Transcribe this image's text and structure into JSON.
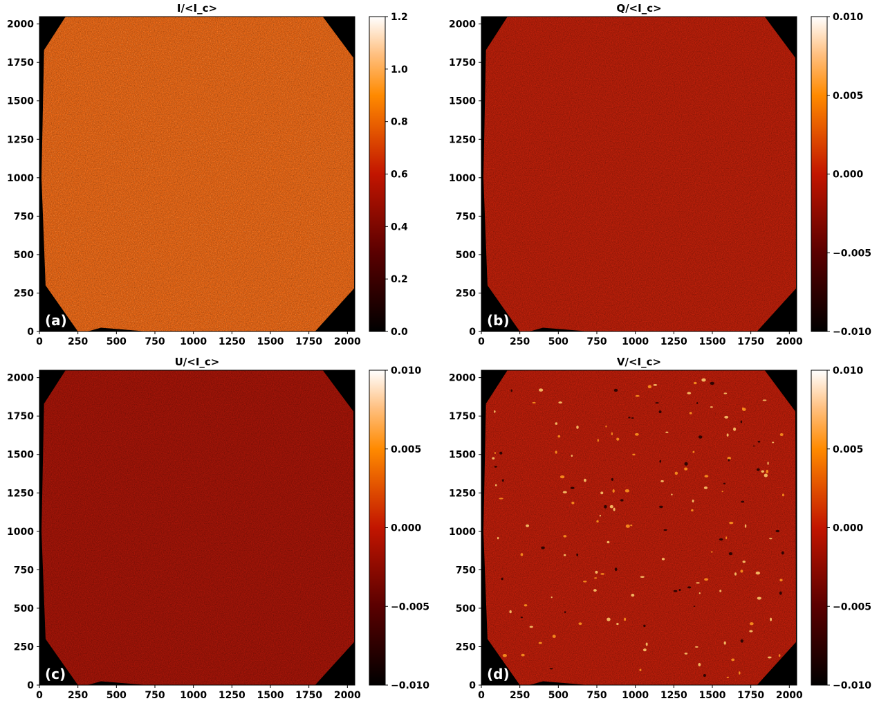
{
  "figure": {
    "panels": [
      {
        "title": "I/<I_c>",
        "label": "(a)",
        "cbar_ticks": [
          "0.0",
          "0.2",
          "0.4",
          "0.6",
          "0.8",
          "1.0",
          "1.2"
        ],
        "cbar_range": [
          0,
          1.2
        ]
      },
      {
        "title": "Q/<I_c>",
        "label": "(b)",
        "cbar_ticks": [
          "−0.010",
          "−0.005",
          "0.000",
          "0.005",
          "0.010"
        ],
        "cbar_range": [
          -0.01,
          0.01
        ]
      },
      {
        "title": "U/<I_c>",
        "label": "(c)",
        "cbar_ticks": [
          "−0.010",
          "−0.005",
          "0.000",
          "0.005",
          "0.010"
        ],
        "cbar_range": [
          -0.01,
          0.01
        ]
      },
      {
        "title": "V/<I_c>",
        "label": "(d)",
        "cbar_ticks": [
          "−0.010",
          "−0.005",
          "0.000",
          "0.005",
          "0.010"
        ],
        "cbar_range": [
          -0.01,
          0.01
        ]
      }
    ],
    "axis_ticks": [
      "0",
      "250",
      "500",
      "750",
      "1000",
      "1250",
      "1500",
      "1750",
      "2000"
    ],
    "colormap": "gist_heat",
    "colors": {
      "background": "#000000",
      "I_fill": "#f06a16",
      "Q_fill": "#c0200a",
      "U_fill": "#a81508",
      "V_fill": "#c01e0a"
    }
  },
  "chart_data": [
    {
      "type": "heatmap",
      "title": "I/<I_c>",
      "xlim": [
        0,
        2048
      ],
      "ylim": [
        0,
        2048
      ],
      "x_ticks": [
        0,
        250,
        500,
        750,
        1000,
        1250,
        1500,
        1750,
        2000
      ],
      "y_ticks": [
        0,
        250,
        500,
        750,
        1000,
        1250,
        1500,
        1750,
        2000
      ],
      "colorbar": {
        "min": 0,
        "max": 1.2,
        "ticks": [
          0,
          0.2,
          0.4,
          0.6,
          0.8,
          1.0,
          1.2
        ]
      },
      "typical_value": 0.85,
      "panel_label": "(a)"
    },
    {
      "type": "heatmap",
      "title": "Q/<I_c>",
      "xlim": [
        0,
        2048
      ],
      "ylim": [
        0,
        2048
      ],
      "x_ticks": [
        0,
        250,
        500,
        750,
        1000,
        1250,
        1500,
        1750,
        2000
      ],
      "y_ticks": [
        0,
        250,
        500,
        750,
        1000,
        1250,
        1500,
        1750,
        2000
      ],
      "colorbar": {
        "min": -0.01,
        "max": 0.01,
        "ticks": [
          -0.01,
          -0.005,
          0.0,
          0.005,
          0.01
        ]
      },
      "typical_value": 0.0,
      "panel_label": "(b)"
    },
    {
      "type": "heatmap",
      "title": "U/<I_c>",
      "xlim": [
        0,
        2048
      ],
      "ylim": [
        0,
        2048
      ],
      "x_ticks": [
        0,
        250,
        500,
        750,
        1000,
        1250,
        1500,
        1750,
        2000
      ],
      "y_ticks": [
        0,
        250,
        500,
        750,
        1000,
        1250,
        1500,
        1750,
        2000
      ],
      "colorbar": {
        "min": -0.01,
        "max": 0.01,
        "ticks": [
          -0.01,
          -0.005,
          0.0,
          0.005,
          0.01
        ]
      },
      "typical_value": -0.001,
      "panel_label": "(c)"
    },
    {
      "type": "heatmap",
      "title": "V/<I_c>",
      "xlim": [
        0,
        2048
      ],
      "ylim": [
        0,
        2048
      ],
      "x_ticks": [
        0,
        250,
        500,
        750,
        1000,
        1250,
        1500,
        1750,
        2000
      ],
      "y_ticks": [
        0,
        250,
        500,
        750,
        1000,
        1250,
        1500,
        1750,
        2000
      ],
      "colorbar": {
        "min": -0.01,
        "max": 0.01,
        "ticks": [
          -0.01,
          -0.005,
          0.0,
          0.005,
          0.01
        ]
      },
      "typical_value": 0.0,
      "panel_label": "(d)"
    }
  ]
}
